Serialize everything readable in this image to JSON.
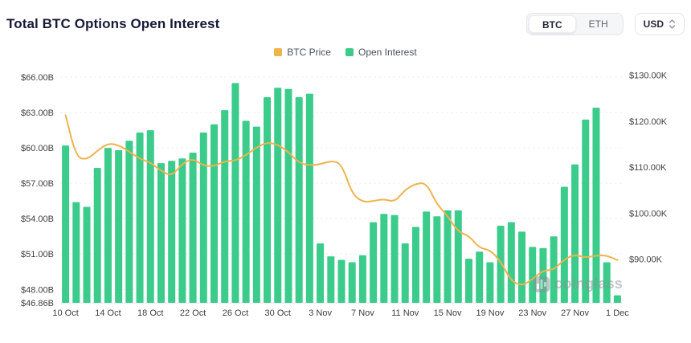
{
  "header": {
    "title": "Total BTC Options Open Interest",
    "coin_tabs": [
      {
        "label": "BTC",
        "active": true
      },
      {
        "label": "ETH",
        "active": false
      }
    ],
    "currency": "USD"
  },
  "watermark": "coinglass",
  "chart_data": {
    "type": "bar",
    "title": "Total BTC Options Open Interest",
    "legend_position": "top-center",
    "grid": "faint-dashed-horizontal",
    "categories": [
      "10 Oct",
      "11 Oct",
      "12 Oct",
      "13 Oct",
      "14 Oct",
      "15 Oct",
      "16 Oct",
      "17 Oct",
      "18 Oct",
      "19 Oct",
      "20 Oct",
      "21 Oct",
      "22 Oct",
      "23 Oct",
      "24 Oct",
      "25 Oct",
      "26 Oct",
      "27 Oct",
      "28 Oct",
      "29 Oct",
      "30 Oct",
      "31 Oct",
      "1 Nov",
      "2 Nov",
      "3 Nov",
      "4 Nov",
      "5 Nov",
      "6 Nov",
      "7 Nov",
      "8 Nov",
      "9 Nov",
      "10 Nov",
      "11 Nov",
      "12 Nov",
      "13 Nov",
      "14 Nov",
      "15 Nov",
      "16 Nov",
      "17 Nov",
      "18 Nov",
      "19 Nov",
      "20 Nov",
      "21 Nov",
      "22 Nov",
      "23 Nov",
      "24 Nov",
      "25 Nov",
      "26 Nov",
      "27 Nov",
      "28 Nov",
      "29 Nov",
      "30 Nov",
      "1 Dec"
    ],
    "x_tick_every": 4,
    "series": [
      {
        "name": "BTC Price",
        "type": "line",
        "axis": "right",
        "color": "#EFB34C",
        "unit": "K USD",
        "values": [
          121.3,
          112.2,
          111.6,
          113.6,
          115.2,
          114.8,
          113.4,
          111.8,
          111.0,
          109.2,
          108.0,
          110.8,
          111.9,
          110.3,
          110.2,
          111.3,
          111.4,
          112.6,
          114.3,
          115.4,
          114.9,
          113.3,
          110.9,
          110.4,
          110.6,
          111.4,
          110.8,
          104.2,
          102.4,
          102.6,
          103.1,
          102.4,
          105.1,
          106.4,
          106.6,
          101.9,
          99.4,
          95.9,
          95.1,
          92.4,
          92.0,
          89.5,
          85.2,
          84.2,
          85.6,
          87.6,
          87.6,
          90.0,
          91.0,
          90.3,
          90.8,
          90.8,
          89.8
        ]
      },
      {
        "name": "Open Interest",
        "type": "bar",
        "axis": "left",
        "color": "#3BCB8B",
        "unit": "B USD",
        "values": [
          60.2,
          55.4,
          55.0,
          58.3,
          60.0,
          59.8,
          60.6,
          61.3,
          61.5,
          58.7,
          58.9,
          59.1,
          59.6,
          61.3,
          62.0,
          63.2,
          65.5,
          62.3,
          61.8,
          64.3,
          65.1,
          65.0,
          64.3,
          64.6,
          51.9,
          50.8,
          50.5,
          50.3,
          50.9,
          53.7,
          54.4,
          54.3,
          51.9,
          53.3,
          54.6,
          54.2,
          54.7,
          54.7,
          50.6,
          51.2,
          50.3,
          53.4,
          53.7,
          52.9,
          51.6,
          51.5,
          52.5,
          56.7,
          58.6,
          62.4,
          63.4,
          50.3,
          47.5
        ]
      }
    ],
    "left_axis": {
      "min": 46.86,
      "max": 66.75,
      "ticks": [
        {
          "v": 66,
          "label": "$66.00B"
        },
        {
          "v": 63,
          "label": "$63.00B"
        },
        {
          "v": 60,
          "label": "$60.00B"
        },
        {
          "v": 57,
          "label": "$57.00B"
        },
        {
          "v": 54,
          "label": "$54.00B"
        },
        {
          "v": 51,
          "label": "$51.00B"
        },
        {
          "v": 48,
          "label": "$48.00B"
        },
        {
          "v": 46.86,
          "label": "$46.86B"
        }
      ]
    },
    "right_axis": {
      "min": 80.5,
      "max": 131.5,
      "ticks": [
        {
          "v": 130,
          "label": "$130.00K"
        },
        {
          "v": 120,
          "label": "$120.00K"
        },
        {
          "v": 110,
          "label": "$110.00K"
        },
        {
          "v": 100,
          "label": "$100.00K"
        },
        {
          "v": 90,
          "label": "$90.00K"
        }
      ]
    }
  }
}
